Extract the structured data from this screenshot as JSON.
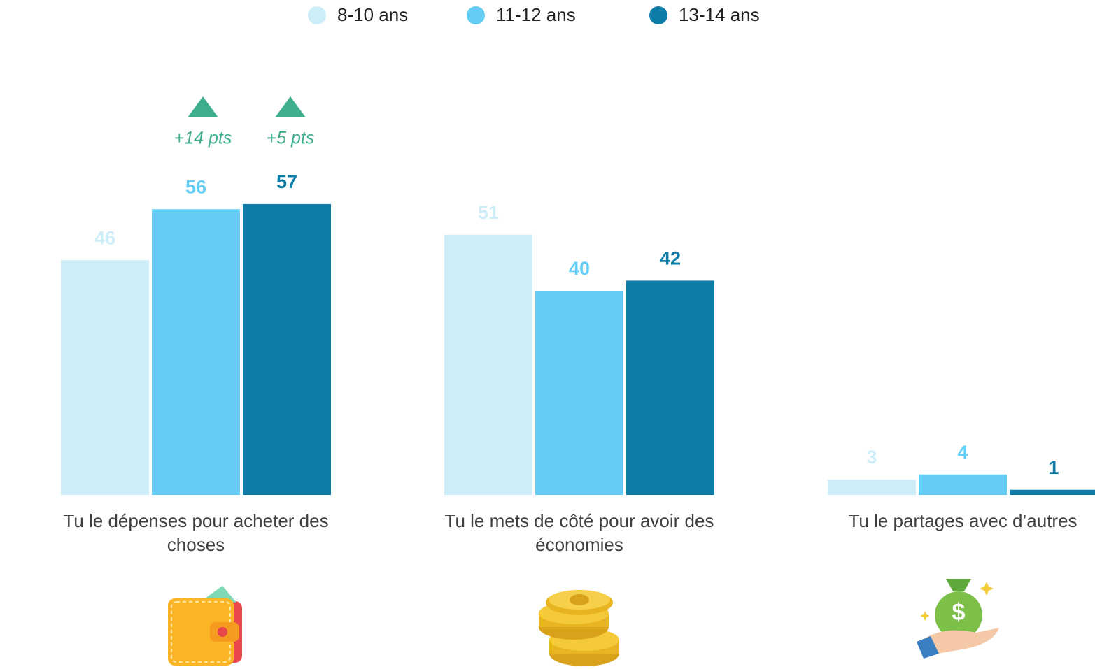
{
  "chart_data": {
    "type": "bar",
    "categories": [
      "Tu le dépenses pour acheter des choses",
      "Tu le mets de côté pour avoir des économies",
      "Tu le partages avec d’autres"
    ],
    "series": [
      {
        "name": "8-10 ans",
        "color": "#cdeef9",
        "values": [
          46,
          51,
          3
        ]
      },
      {
        "name": "11-12 ans",
        "color": "#63cdf5",
        "values": [
          56,
          40,
          4
        ]
      },
      {
        "name": "13-14 ans",
        "color": "#0e7ea9",
        "values": [
          57,
          42,
          1
        ]
      }
    ],
    "annotations": [
      {
        "text": "+14 pts",
        "series": 1,
        "category": 0
      },
      {
        "text": "+5 pts",
        "series": 2,
        "category": 0
      }
    ],
    "legend": "top"
  }
}
